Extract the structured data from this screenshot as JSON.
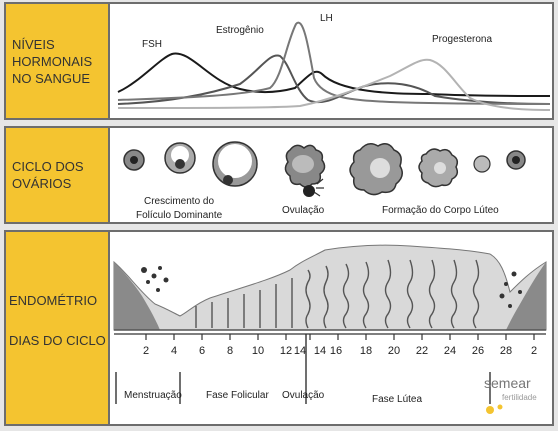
{
  "hormones": {
    "section_label": [
      "NÍVEIS",
      "HORMONAIS",
      "NO SANGUE"
    ],
    "fsh": "FSH",
    "estrogen": "Estrogênio",
    "lh": "LH",
    "progesterone": "Progesterona"
  },
  "ovary": {
    "section_label": [
      "CICLO DOS",
      "OVÁRIOS"
    ],
    "growth_label": [
      "Crescimento do",
      "Folículo Dominante"
    ],
    "ovulation": "Ovulação",
    "corpus_luteum": "Formação do Corpo Lúteo"
  },
  "endometrium": {
    "section_label": "ENDOMÉTRIO",
    "days_label": "DIAS DO CICLO",
    "days": [
      "2",
      "4",
      "6",
      "8",
      "10",
      "12",
      "14",
      "14",
      "16",
      "18",
      "20",
      "22",
      "24",
      "26",
      "28",
      "2"
    ],
    "phases": {
      "menstruation": "Menstruação",
      "follicular": "Fase Folicular",
      "ovulation": "Ovulação",
      "luteal": "Fase Lútea"
    }
  },
  "logo": {
    "brand": "semear",
    "sub": "fertilidade",
    "dot_color": "#f4c430"
  },
  "colors": {
    "section_bg": "#f4c430"
  }
}
